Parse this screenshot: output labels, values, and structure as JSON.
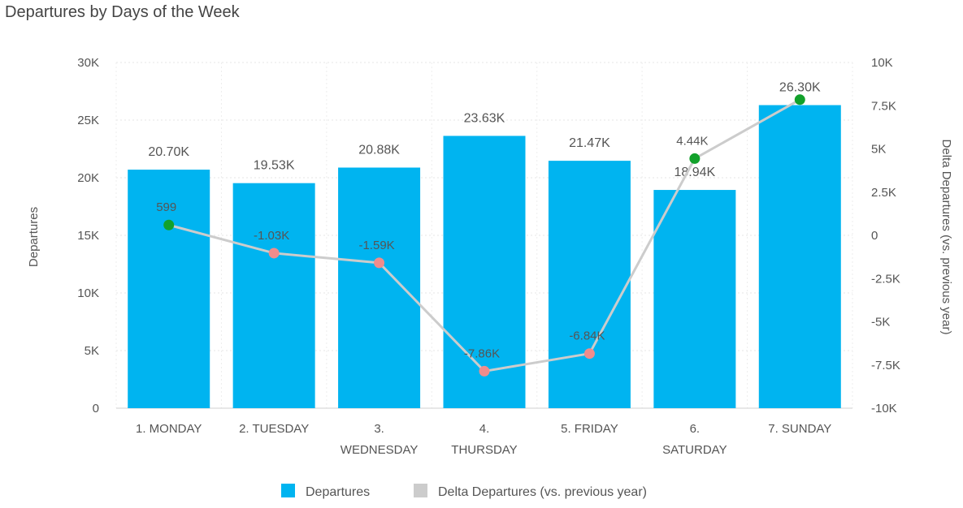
{
  "chart_data": {
    "type": "bar",
    "title": "Departures by Days of the Week",
    "categories": [
      [
        "1. MONDAY"
      ],
      [
        "2. TUESDAY"
      ],
      [
        "3.",
        "WEDNESDAY"
      ],
      [
        "4.",
        "THURSDAY"
      ],
      [
        "5. FRIDAY"
      ],
      [
        "6.",
        "SATURDAY"
      ],
      [
        "7. SUNDAY"
      ]
    ],
    "ylabel": "Departures",
    "y2label": "Delta Departures (vs. previous year)",
    "ylim": [
      0,
      30000
    ],
    "y2lim": [
      -10000,
      10000
    ],
    "y_ticks": [
      "0",
      "5K",
      "10K",
      "15K",
      "20K",
      "25K",
      "30K"
    ],
    "y_tick_values": [
      0,
      5000,
      10000,
      15000,
      20000,
      25000,
      30000
    ],
    "y2_ticks": [
      "-10K",
      "-7.5K",
      "-5K",
      "-2.5K",
      "0",
      "2.5K",
      "5K",
      "7.5K",
      "10K"
    ],
    "y2_tick_values": [
      -10000,
      -7500,
      -5000,
      -2500,
      0,
      2500,
      5000,
      7500,
      10000
    ],
    "grid": true,
    "legend_position": "bottom",
    "series": [
      {
        "name": "Departures",
        "type": "bar",
        "axis": "left",
        "color": "#00b4f0",
        "values": [
          20700,
          19530,
          20880,
          23630,
          21470,
          18940,
          26300
        ],
        "labels": [
          "20.70K",
          "19.53K",
          "20.88K",
          "23.63K",
          "21.47K",
          "18.94K",
          "26.30K"
        ]
      },
      {
        "name": "Delta Departures (vs. previous year)",
        "type": "line",
        "axis": "right",
        "color": "#cccccc",
        "positive_marker_color": "#12a12b",
        "negative_marker_color": "#f08c8c",
        "values": [
          599,
          -1030,
          -1590,
          -7860,
          -6840,
          4440,
          7850
        ],
        "labels": [
          "599",
          "-1.03K",
          "-1.59K",
          "-7.86K",
          "-6.84K",
          "4.44K",
          ""
        ]
      }
    ]
  }
}
